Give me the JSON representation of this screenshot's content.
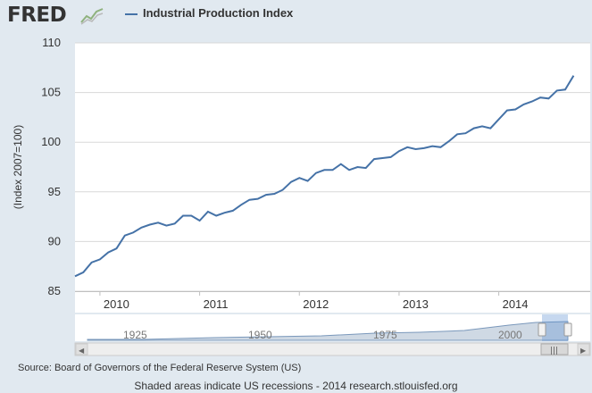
{
  "header": {
    "logo_text": "FRED",
    "logo_icon": "sparkline-chart-icon",
    "legend_label": "Industrial Production Index",
    "series_color": "#4572a7"
  },
  "chart_data": {
    "type": "line",
    "title": "",
    "xlabel": "",
    "ylabel": "(Index 2007=100)",
    "ylim": [
      85,
      110
    ],
    "yticks": [
      "85",
      "90",
      "95",
      "100",
      "105",
      "110"
    ],
    "xtick_labels": [
      "2010",
      "2011",
      "2012",
      "2013",
      "2014"
    ],
    "xtick_years": [
      2010,
      2011,
      2012,
      2013,
      2014
    ],
    "xlim": [
      2009.75,
      2014.917
    ],
    "grid": true,
    "series": [
      {
        "name": "Industrial Production Index",
        "start_year": 2009.75,
        "step_months": 1,
        "values": [
          86.5,
          86.9,
          87.9,
          88.2,
          88.9,
          89.3,
          90.6,
          90.9,
          91.4,
          91.7,
          91.9,
          91.6,
          91.8,
          92.6,
          92.6,
          92.1,
          93.0,
          92.6,
          92.9,
          93.1,
          93.7,
          94.2,
          94.3,
          94.7,
          94.8,
          95.2,
          96.0,
          96.4,
          96.1,
          96.9,
          97.2,
          97.2,
          97.8,
          97.2,
          97.5,
          97.4,
          98.3,
          98.4,
          98.5,
          99.1,
          99.5,
          99.3,
          99.4,
          99.6,
          99.5,
          100.1,
          100.8,
          100.9,
          101.4,
          101.6,
          101.4,
          102.3,
          103.2,
          103.3,
          103.8,
          104.1,
          104.5,
          104.4,
          105.2,
          105.3,
          106.7
        ]
      }
    ]
  },
  "navigator": {
    "labels": [
      "1925",
      "1950",
      "1975",
      "2000"
    ],
    "left_arrow": "◀",
    "right_arrow": "▶",
    "grip": "|||"
  },
  "source_text": "Source: Board of Governors of the Federal Reserve System (US)",
  "footer_text": "Shaded areas indicate US recessions - 2014 research.stlouisfed.org"
}
